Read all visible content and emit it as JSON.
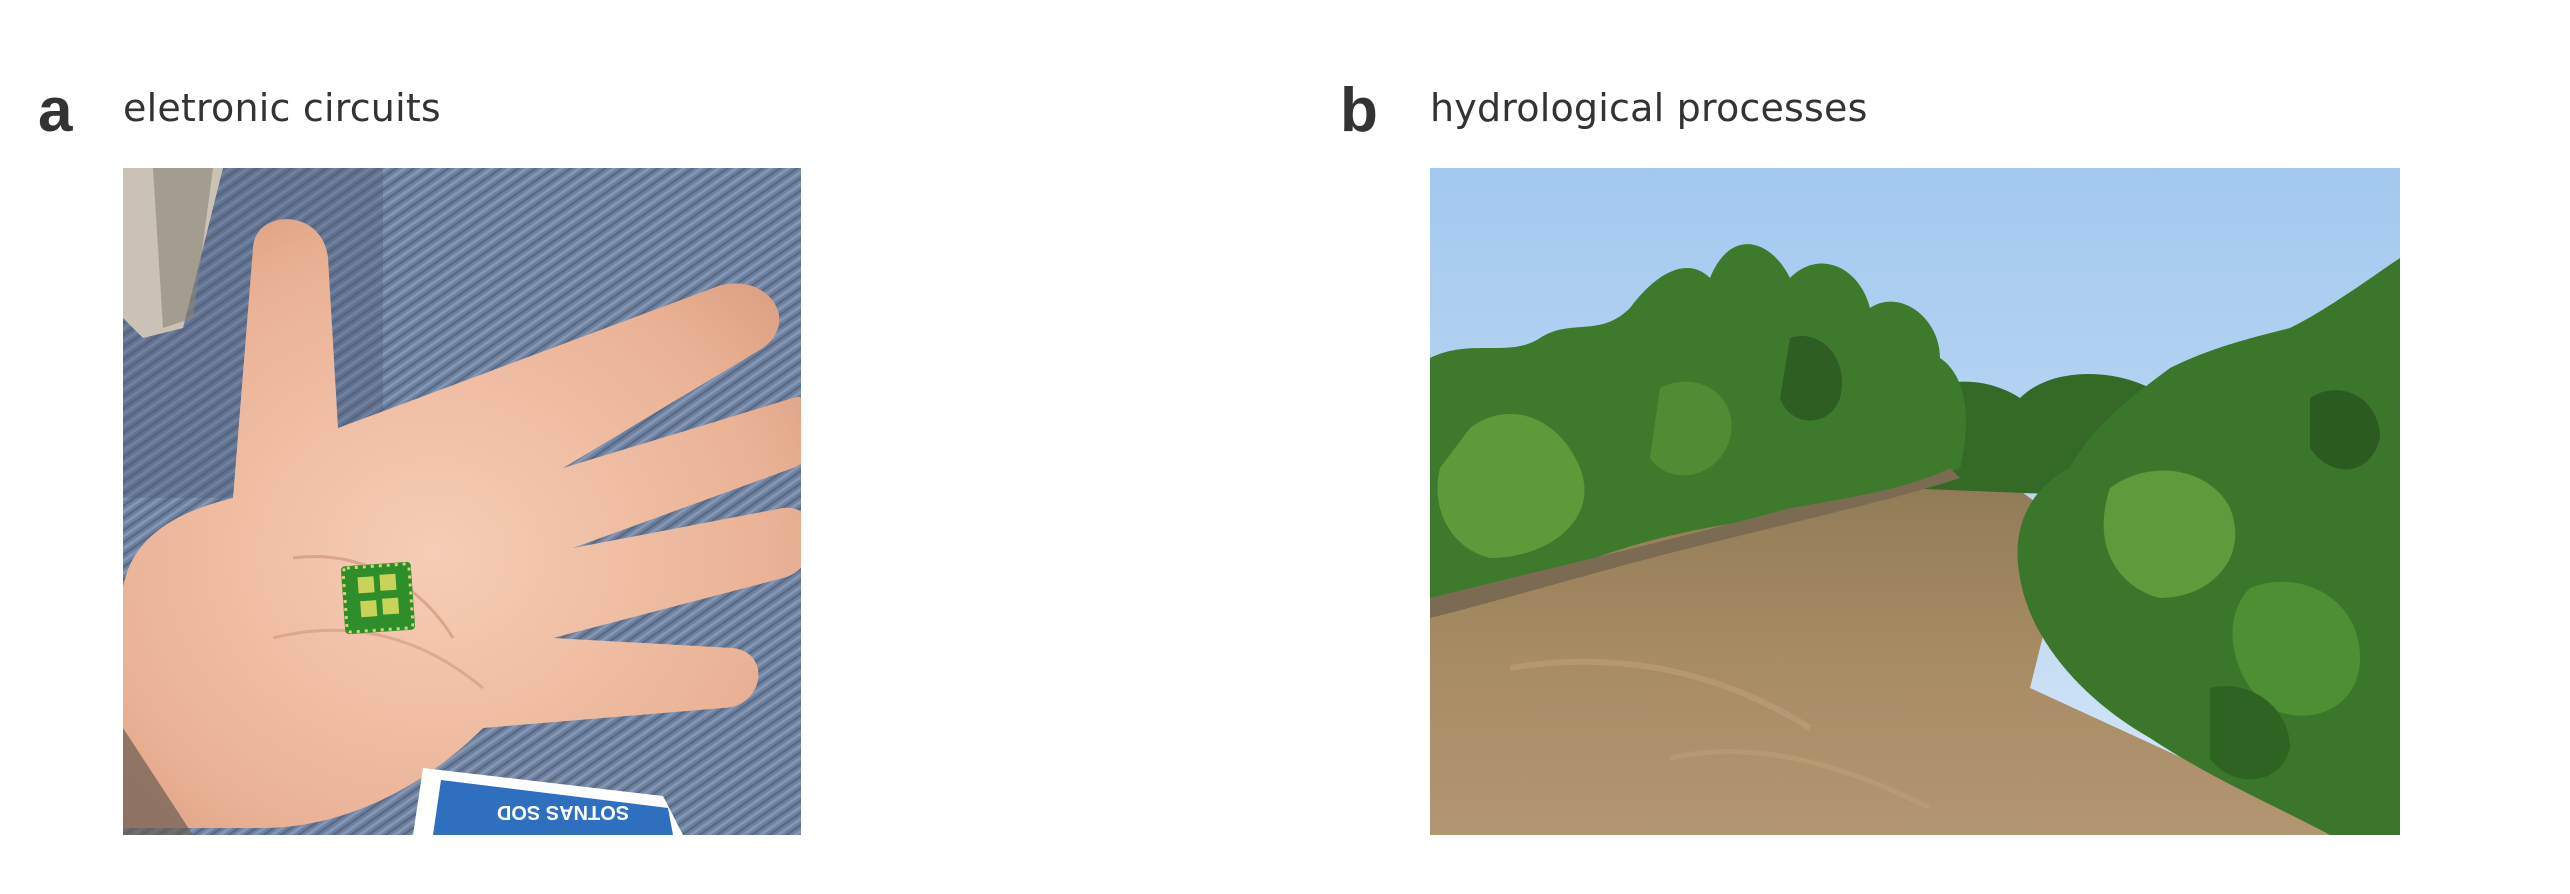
{
  "panels": [
    {
      "letter": "a",
      "title": "eletronic circuits",
      "photo_icon": "hand-holding-chip-photo",
      "badge_text": "SOTNAS SOD"
    },
    {
      "letter": "b",
      "title": "hydrological processes",
      "photo_icon": "river-landscape-photo"
    }
  ],
  "colors": {
    "text": "#333333",
    "sky": "#a9cdf0",
    "water": "#a3875f",
    "foliage": "#3e7a2c",
    "chip": "#2e8f2a"
  }
}
